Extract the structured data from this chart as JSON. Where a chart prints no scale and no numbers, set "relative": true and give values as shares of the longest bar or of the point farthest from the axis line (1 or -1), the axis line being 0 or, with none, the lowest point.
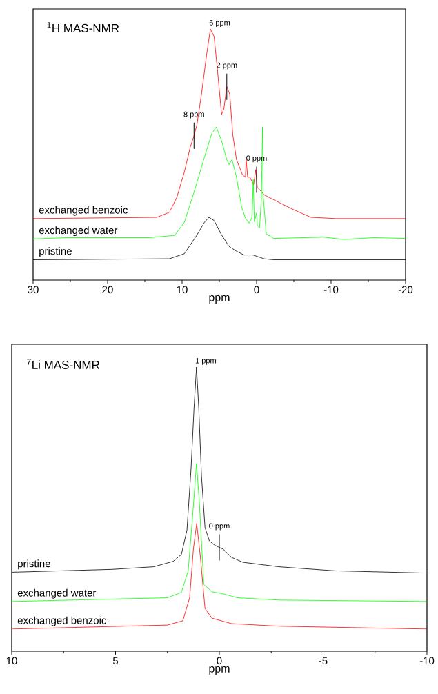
{
  "chart_data": [
    {
      "type": "line",
      "title": "$^{1}$H MAS-NMR",
      "xlabel": "ppm",
      "relative": true,
      "legend": false,
      "grid": false,
      "marker": "none",
      "line_style": "solid",
      "xlim": [
        30,
        -20
      ],
      "xticks": [
        30,
        {
          "value": 25,
          "label": null
        },
        20,
        {
          "value": 15,
          "label": null
        },
        10,
        {
          "value": 5,
          "label": null
        },
        0,
        {
          "value": -5,
          "label": null
        },
        -10,
        {
          "value": -15,
          "label": null
        },
        -20
      ],
      "series": [
        {
          "name": "exchanged benzoic",
          "color": "#ff0000",
          "x": [
            30,
            13.4,
            11.7,
            10.7,
            9.7,
            8.9,
            8.4,
            8.0,
            7.4,
            6.7,
            6.2,
            5.7,
            5.2,
            4.7,
            4.4,
            4.0,
            3.6,
            3.2,
            2.7,
            1.9,
            1.5,
            1.4,
            1.2,
            0.9,
            0.4,
            0.1,
            0.0,
            -0.1,
            -1.0,
            -2.3,
            -5.0,
            -7.3,
            -10.7,
            -20
          ],
          "values": [
            0.245,
            0.25,
            0.27,
            0.33,
            0.43,
            0.53,
            0.575,
            0.62,
            0.74,
            0.9,
            1.0,
            0.97,
            0.82,
            0.66,
            0.68,
            0.77,
            0.74,
            0.58,
            0.48,
            0.42,
            0.41,
            0.48,
            0.41,
            0.41,
            0.38,
            0.44,
            0.4,
            0.37,
            0.34,
            0.32,
            0.28,
            0.25,
            0.245,
            0.245
          ]
        },
        {
          "name": "exchanged water",
          "color": "#00ff00",
          "x": [
            30,
            25.4,
            14.4,
            11.0,
            9.7,
            8.4,
            7.0,
            6.0,
            5.4,
            4.7,
            4.0,
            3.7,
            3.3,
            2.7,
            2.0,
            1.5,
            1.0,
            0.6,
            0.45,
            0.3,
            0.0,
            -0.1,
            -0.4,
            -0.65,
            -0.8,
            -0.9,
            -1.3,
            -2.3,
            -9.0,
            -11.7,
            -15.7,
            -20
          ],
          "values": [
            0.164,
            0.169,
            0.169,
            0.178,
            0.23,
            0.35,
            0.49,
            0.585,
            0.61,
            0.555,
            0.48,
            0.46,
            0.48,
            0.41,
            0.29,
            0.247,
            0.227,
            0.25,
            0.4,
            0.232,
            0.267,
            0.218,
            0.208,
            0.33,
            0.61,
            0.33,
            0.184,
            0.166,
            0.171,
            0.162,
            0.169,
            0.166
          ]
        },
        {
          "name": "pristine",
          "color": "#000000",
          "x": [
            30,
            11.7,
            9.7,
            8.0,
            7.0,
            6.4,
            5.7,
            4.7,
            3.7,
            2.7,
            1.7,
            0.5,
            -1.0,
            -2.3,
            -20
          ],
          "values": [
            0.081,
            0.085,
            0.105,
            0.18,
            0.23,
            0.25,
            0.237,
            0.18,
            0.134,
            0.115,
            0.1,
            0.1,
            0.085,
            0.081,
            0.081
          ]
        }
      ],
      "annotations": [
        "6 ppm",
        {
          "text": "2 ppm",
          "x": 4.0,
          "y": 0.77
        },
        {
          "text": "8 ppm",
          "x": 8.4,
          "y": 0.575
        },
        {
          "text": "0 ppm",
          "x": 0.0,
          "y": 0.4
        }
      ]
    },
    {
      "type": "line",
      "title": "$^{7}$Li MAS-NMR",
      "xlabel": "ppm",
      "relative": true,
      "legend": false,
      "grid": false,
      "marker": "none",
      "line_style": "solid",
      "xlim": [
        10,
        -10
      ],
      "xticks": [
        10,
        {
          "value": 7.5,
          "label": null
        },
        5,
        {
          "value": 2.5,
          "label": null
        },
        0,
        {
          "value": -2.5,
          "label": null
        },
        -5,
        {
          "value": -7.5,
          "label": null
        },
        -10
      ],
      "series": [
        {
          "name": "pristine",
          "color": "#000000",
          "x": [
            10,
            5.19,
            3.17,
            2.23,
            1.83,
            1.56,
            1.36,
            1.22,
            1.1,
            0.99,
            0.86,
            0.69,
            0.48,
            0.22,
            0.0,
            -0.19,
            -0.59,
            -1.13,
            -2.88,
            -5.56,
            -10
          ],
          "values": [
            0.278,
            0.288,
            0.297,
            0.316,
            0.34,
            0.426,
            0.645,
            0.854,
            1.0,
            0.854,
            0.616,
            0.435,
            0.388,
            0.373,
            0.365,
            0.359,
            0.33,
            0.313,
            0.297,
            0.283,
            0.275
          ]
        },
        {
          "name": "exchanged water",
          "color": "#00ff00",
          "x": [
            10,
            2.5,
            1.83,
            1.5,
            1.29,
            1.1,
            0.96,
            0.75,
            0.35,
            -0.19,
            -0.86,
            -2.88,
            -10
          ],
          "values": [
            0.175,
            0.188,
            0.207,
            0.283,
            0.473,
            0.661,
            0.521,
            0.235,
            0.209,
            0.202,
            0.188,
            0.18,
            0.175
          ]
        },
        {
          "name": "exchanged benzoic",
          "color": "#ff0000",
          "x": [
            10,
            2.5,
            1.76,
            1.43,
            1.25,
            1.09,
            0.91,
            0.69,
            0.35,
            -0.59,
            -2.88,
            -10
          ],
          "values": [
            0.078,
            0.092,
            0.107,
            0.188,
            0.359,
            0.45,
            0.33,
            0.15,
            0.116,
            0.097,
            0.088,
            0.078
          ]
        }
      ],
      "annotations": [
        "1 ppm",
        {
          "text": "0 ppm",
          "x": 0.0,
          "y": 0.365
        }
      ]
    }
  ]
}
